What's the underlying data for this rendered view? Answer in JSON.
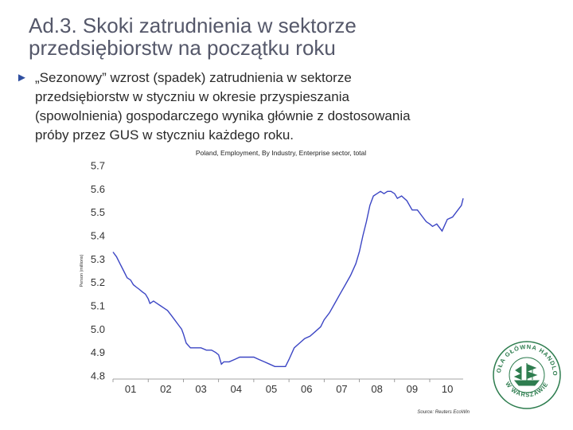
{
  "slide": {
    "title_line1": "Ad.3. Skoki zatrudnienia w sektorze",
    "title_line2": "przedsiębiorstw na początku roku",
    "bullet_line1": "„Sezonowy” wzrost (spadek) zatrudnienia w sektorze",
    "bullet_line2": "przedsiębiorstw w styczniu w okresie przyspieszania",
    "bullet_line3": "(spowolnienia) gospodarczego wynika głównie z dostosowania",
    "bullet_line4": "próby przez GUS w styczniu każdego roku."
  },
  "logo": {
    "text_top": "SZKOŁA GŁÓWNA HANDLOWA",
    "text_bottom": "W WARSZAWIE",
    "color": "#2e7d4f"
  },
  "chart_data": {
    "type": "line",
    "title": "Poland, Employment, By Industry, Enterprise sector, total",
    "ylabel": "Person (millions)",
    "source": "Source: Reuters EcoWin",
    "xlim": [
      2001.0,
      2010.95
    ],
    "ylim": [
      4.8,
      5.7
    ],
    "yticks": [
      "5.7",
      "5.6",
      "5.5",
      "5.4",
      "5.3",
      "5.2",
      "5.1",
      "5.0",
      "4.9",
      "4.8"
    ],
    "xticks": [
      "01",
      "02",
      "03",
      "04",
      "05",
      "06",
      "07",
      "08",
      "09",
      "10"
    ],
    "line_color": "#3b45c4",
    "series": [
      {
        "x": [
          2001.0,
          2001.1,
          2001.2,
          2001.3,
          2001.4,
          2001.5,
          2001.58,
          2001.66,
          2001.75,
          2001.83,
          2001.92,
          2002.0,
          2002.05,
          2002.15,
          2002.25,
          2002.35,
          2002.45,
          2002.55,
          2002.65,
          2002.75,
          2002.85,
          2002.95,
          2003.0,
          2003.08,
          2003.2,
          2003.35,
          2003.5,
          2003.65,
          2003.8,
          2003.92,
          2004.0,
          2004.08,
          2004.15,
          2004.3,
          2004.45,
          2004.6,
          2004.75,
          2004.9,
          2005.0,
          2005.15,
          2005.3,
          2005.45,
          2005.6,
          2005.75,
          2005.9,
          2006.0,
          2006.15,
          2006.3,
          2006.45,
          2006.6,
          2006.75,
          2006.9,
          2007.0,
          2007.15,
          2007.3,
          2007.45,
          2007.6,
          2007.75,
          2007.9,
          2008.0,
          2008.1,
          2008.2,
          2008.3,
          2008.4,
          2008.5,
          2008.6,
          2008.7,
          2008.8,
          2008.9,
          2009.0,
          2009.08,
          2009.2,
          2009.35,
          2009.5,
          2009.65,
          2009.8,
          2009.9,
          2010.0,
          2010.08,
          2010.2,
          2010.35,
          2010.5,
          2010.65,
          2010.8,
          2010.9,
          2010.95
        ],
        "y": [
          5.33,
          5.31,
          5.28,
          5.25,
          5.22,
          5.21,
          5.19,
          5.18,
          5.17,
          5.16,
          5.15,
          5.13,
          5.11,
          5.12,
          5.11,
          5.1,
          5.09,
          5.08,
          5.06,
          5.04,
          5.02,
          5.0,
          4.98,
          4.94,
          4.92,
          4.92,
          4.92,
          4.91,
          4.91,
          4.9,
          4.89,
          4.85,
          4.86,
          4.86,
          4.87,
          4.88,
          4.88,
          4.88,
          4.88,
          4.87,
          4.86,
          4.85,
          4.84,
          4.84,
          4.84,
          4.87,
          4.92,
          4.94,
          4.96,
          4.97,
          4.99,
          5.01,
          5.04,
          5.07,
          5.11,
          5.15,
          5.19,
          5.23,
          5.28,
          5.33,
          5.4,
          5.46,
          5.53,
          5.57,
          5.58,
          5.59,
          5.58,
          5.59,
          5.59,
          5.58,
          5.56,
          5.57,
          5.55,
          5.51,
          5.51,
          5.48,
          5.46,
          5.45,
          5.44,
          5.45,
          5.42,
          5.47,
          5.48,
          5.51,
          5.53,
          5.56
        ]
      }
    ]
  }
}
